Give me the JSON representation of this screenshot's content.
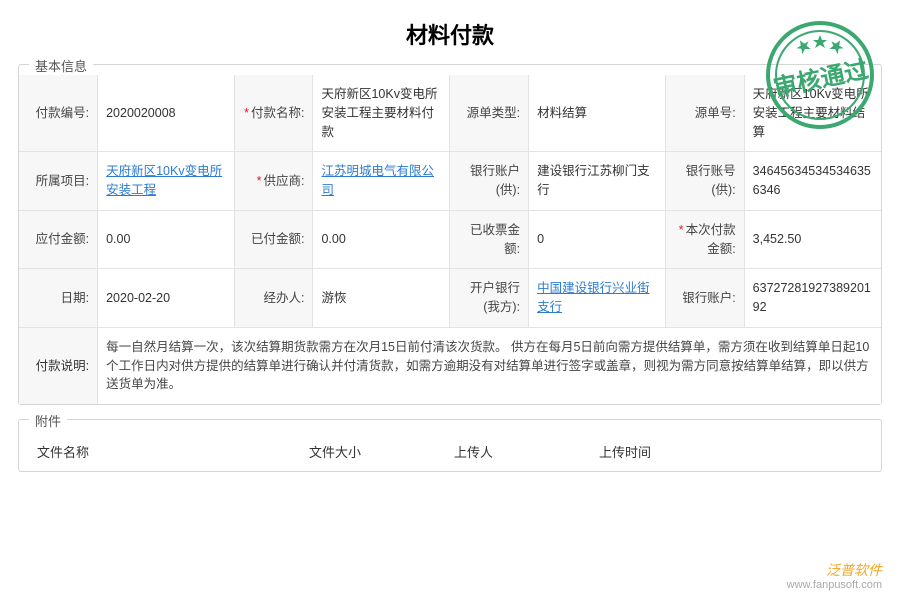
{
  "title": "材料付款",
  "basic_info": {
    "legend": "基本信息",
    "rows": [
      [
        {
          "label": "付款编号:",
          "value": "2020020008",
          "required": false,
          "link": false
        },
        {
          "label": "付款名称:",
          "value": "天府新区10Kv变电所安装工程主要材料付款",
          "required": true,
          "link": false
        },
        {
          "label": "源单类型:",
          "value": "材料结算",
          "required": false,
          "link": false
        },
        {
          "label": "源单号:",
          "value": "天府新区10Kv变电所安装工程主要材料结算",
          "required": false,
          "link": false
        }
      ],
      [
        {
          "label": "所属项目:",
          "value": "天府新区10Kv变电所安装工程",
          "required": false,
          "link": true
        },
        {
          "label": "供应商:",
          "value": "江苏明城电气有限公司",
          "required": true,
          "link": true
        },
        {
          "label": "银行账户(供):",
          "value": "建设银行江苏柳门支行",
          "required": false,
          "link": false
        },
        {
          "label": "银行账号(供):",
          "value": "346456345345346356346",
          "required": false,
          "link": false
        }
      ],
      [
        {
          "label": "应付金额:",
          "value": "0.00",
          "required": false,
          "link": false
        },
        {
          "label": "已付金额:",
          "value": "0.00",
          "required": false,
          "link": false
        },
        {
          "label": "已收票金额:",
          "value": "0",
          "required": false,
          "link": false
        },
        {
          "label": "本次付款金额:",
          "value": "3,452.50",
          "required": true,
          "link": false
        }
      ],
      [
        {
          "label": "日期:",
          "value": "2020-02-20",
          "required": false,
          "link": false
        },
        {
          "label": "经办人:",
          "value": "游恢",
          "required": false,
          "link": false
        },
        {
          "label": "开户银行(我方):",
          "value": "中国建设银行兴业街支行",
          "required": false,
          "link": true
        },
        {
          "label": "银行账户:",
          "value": "63727281927389201​92",
          "required": false,
          "link": false
        }
      ]
    ],
    "description": {
      "label": "付款说明:",
      "value": "每一自然月结算一次，该次结算期货款需方在次月15日前付清该次货款。 供方在每月5日前向需方提供结算单，需方须在收到结算单日起10个工作日内对供方提供的结算单进行确认并付清货款，如需方逾期没有对结算单进行签字或盖章，则视为需方同意按结算单结算，即以供方送货单为准。"
    }
  },
  "attachments": {
    "legend": "附件",
    "columns": {
      "name": "文件名称",
      "size": "文件大小",
      "uploader": "上传人",
      "time": "上传时间"
    }
  },
  "stamp": {
    "text": "审核通过",
    "color": "#3aa86f",
    "stroke_width": 4
  },
  "watermark": {
    "brand": "泛普软件",
    "url": "www.fanpusoft.com",
    "color": "#f5a623"
  },
  "styling": {
    "border_color": "#d5d5d5",
    "cell_border": "#e3e3e3",
    "label_bg": "#f7f7f7",
    "link_color": "#2d7cd1",
    "required_color": "#e02020"
  }
}
